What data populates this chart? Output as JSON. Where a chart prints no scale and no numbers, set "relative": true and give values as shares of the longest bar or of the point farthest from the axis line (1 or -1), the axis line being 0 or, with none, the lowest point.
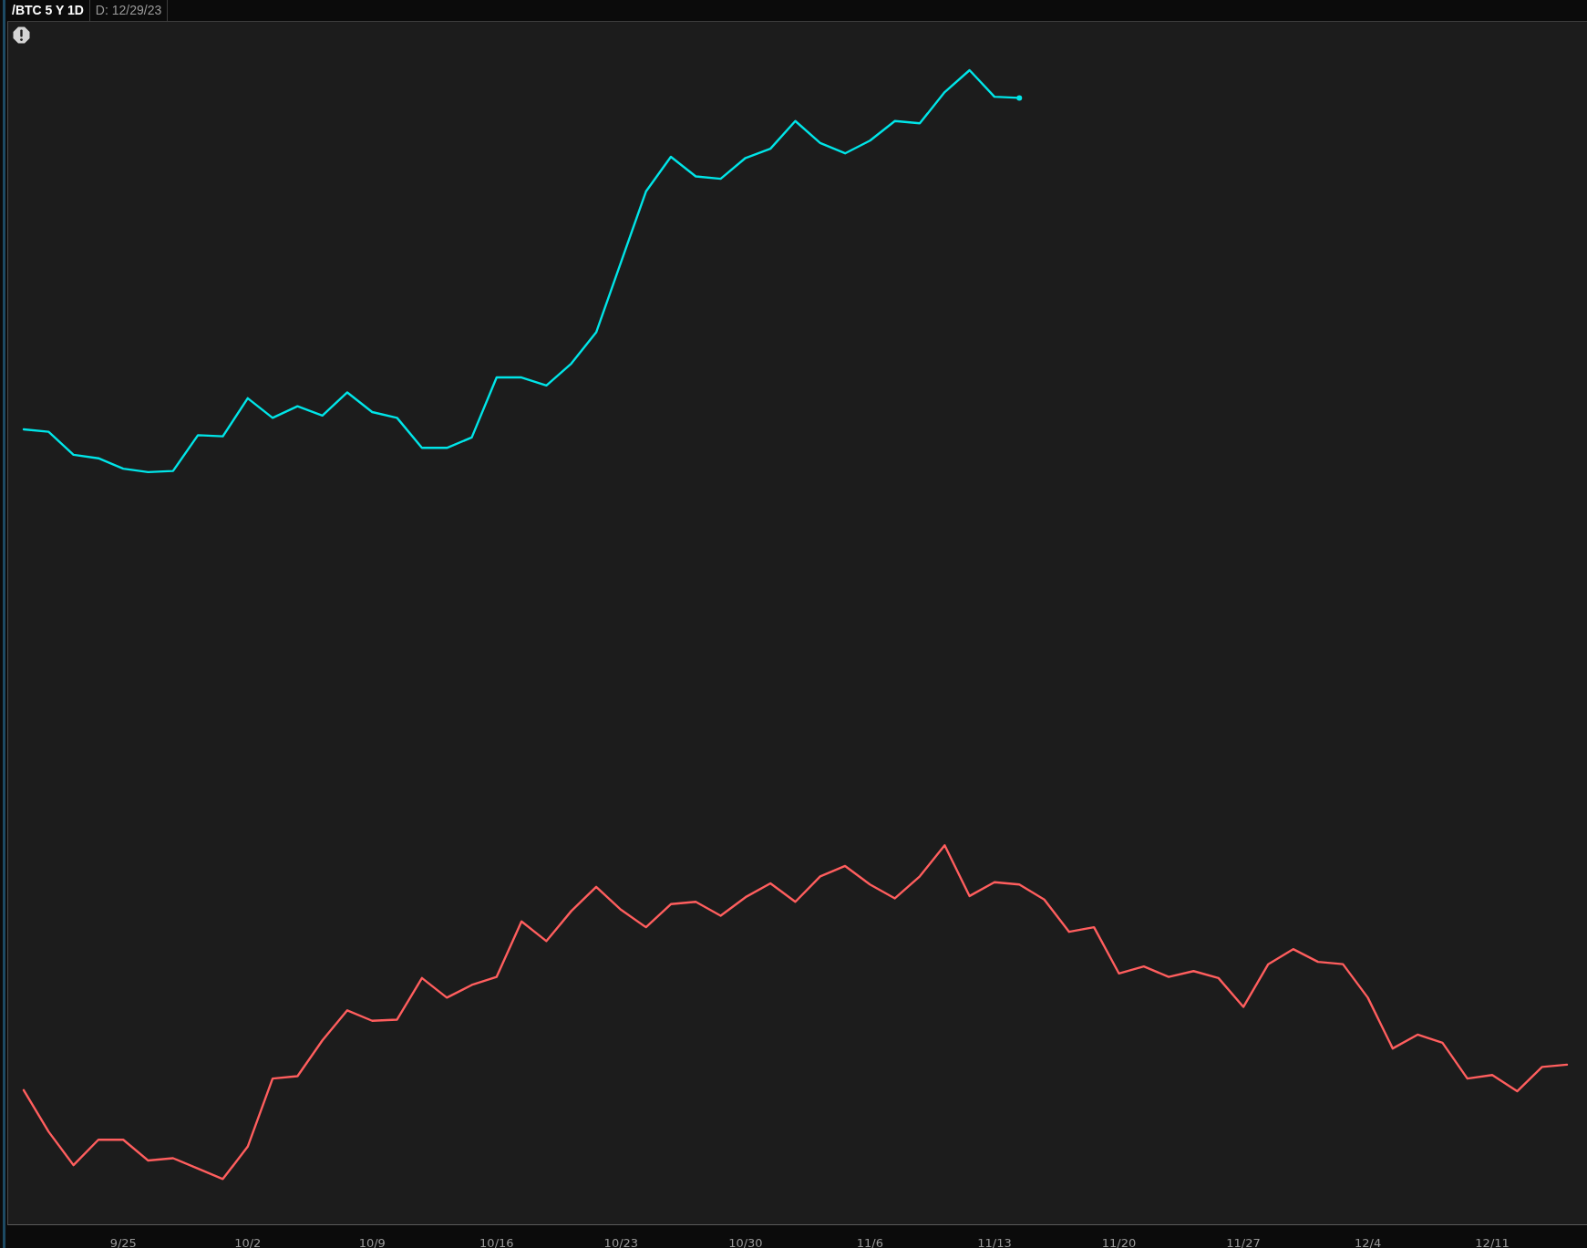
{
  "chart_data": {
    "type": "line",
    "title": "/BTC 5 Y 1D",
    "subtitle": "D: 12/29/23",
    "relative": true,
    "line_style": "solid",
    "categories": [
      null,
      null,
      null,
      null,
      "9/25",
      null,
      null,
      null,
      null,
      "10/2",
      null,
      null,
      null,
      null,
      "10/9",
      null,
      null,
      null,
      null,
      "10/16",
      null,
      null,
      null,
      null,
      "10/23",
      null,
      null,
      null,
      null,
      "10/30",
      null,
      null,
      null,
      null,
      "11/6",
      null,
      null,
      null,
      null,
      "11/13",
      null,
      null,
      null,
      null,
      "11/20",
      null,
      null,
      null,
      null,
      "11/27",
      null,
      null,
      null,
      null,
      "12/4",
      null,
      null,
      null,
      null,
      "12/11",
      null,
      null,
      null
    ],
    "series": [
      {
        "color": "#00e5e8",
        "values": [
          0.689,
          0.687,
          0.667,
          0.664,
          0.655,
          0.652,
          0.653,
          0.684,
          0.683,
          0.716,
          0.699,
          0.709,
          0.701,
          0.721,
          0.704,
          0.699,
          0.673,
          0.673,
          0.682,
          0.734,
          0.734,
          0.727,
          0.746,
          0.773,
          0.834,
          0.895,
          0.925,
          0.908,
          0.906,
          0.924,
          0.932,
          0.956,
          0.937,
          0.928,
          0.939,
          0.956,
          0.954,
          0.981,
          1,
          0.977,
          0.976,
          null,
          null,
          null,
          null,
          null,
          null,
          null,
          null,
          null,
          null,
          null,
          null,
          null,
          null,
          null,
          null,
          null,
          null,
          null,
          null,
          null,
          null
        ]
      },
      {
        "color": "#ff5e5e",
        "values": [
          0.117,
          0.081,
          0.052,
          0.074,
          0.074,
          0.056,
          0.058,
          0.049,
          0.04,
          0.068,
          0.127,
          0.129,
          0.16,
          0.186,
          0.177,
          0.178,
          0.214,
          0.197,
          0.208,
          0.215,
          0.263,
          0.246,
          0.272,
          0.293,
          0.273,
          0.258,
          0.278,
          0.28,
          0.268,
          0.284,
          0.296,
          0.28,
          0.302,
          0.311,
          0.295,
          0.283,
          0.302,
          0.329,
          0.285,
          0.297,
          0.295,
          0.282,
          0.254,
          0.258,
          0.218,
          0.224,
          0.215,
          0.22,
          0.214,
          0.189,
          0.226,
          0.239,
          0.228,
          0.226,
          0.197,
          0.153,
          0.165,
          0.158,
          0.127,
          0.13,
          0.116,
          0.137,
          0.139
        ]
      },
      {
        "type": "scatter",
        "color": "#00e5e8",
        "values": [
          null,
          null,
          null,
          null,
          null,
          null,
          null,
          null,
          null,
          null,
          null,
          null,
          null,
          null,
          null,
          null,
          null,
          null,
          null,
          null,
          null,
          null,
          null,
          null,
          null,
          null,
          null,
          null,
          null,
          null,
          null,
          null,
          null,
          null,
          null,
          null,
          null,
          null,
          null,
          null,
          0.976,
          null,
          null,
          null,
          null,
          null,
          null,
          null,
          null,
          null,
          null,
          null,
          null,
          null,
          null,
          null,
          null,
          null,
          null,
          null,
          null,
          null,
          null
        ]
      }
    ]
  }
}
